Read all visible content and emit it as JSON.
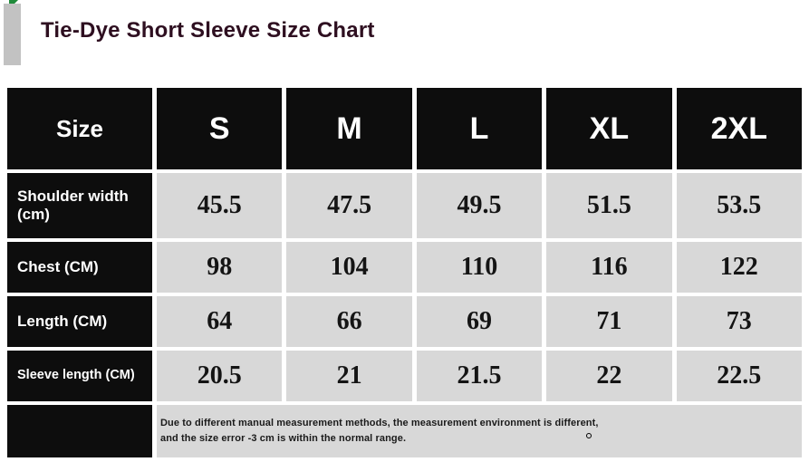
{
  "header": {
    "title": "Tie-Dye Short Sleeve Size Chart",
    "title_color": "#2e0f20",
    "accent_bar_color": "#c2c2c2",
    "corner_triangle_color": "#1f8a3a"
  },
  "table_style": {
    "header_bg": "#0d0d0d",
    "header_text_color": "#ffffff",
    "cell_bg": "#d8d8d8",
    "cell_text_color": "#141414"
  },
  "chart_data": {
    "type": "table",
    "title": "Tie-Dye Short Sleeve Size Chart",
    "columns": [
      "Size",
      "S",
      "M",
      "L",
      "XL",
      "2XL"
    ],
    "rows": [
      {
        "label": "Shoulder width (cm)",
        "values": [
          45.5,
          47.5,
          49.5,
          51.5,
          53.5
        ]
      },
      {
        "label": "Chest (CM)",
        "values": [
          98,
          104,
          110,
          116,
          122
        ]
      },
      {
        "label": "Length (CM)",
        "values": [
          64,
          66,
          69,
          71,
          73
        ]
      },
      {
        "label": "Sleeve length (CM)",
        "values": [
          20.5,
          21,
          21.5,
          22,
          22.5
        ]
      }
    ],
    "note": "Due to different manual measurement methods, the measurement environment is different, and the size error -3 cm is within the normal range."
  }
}
